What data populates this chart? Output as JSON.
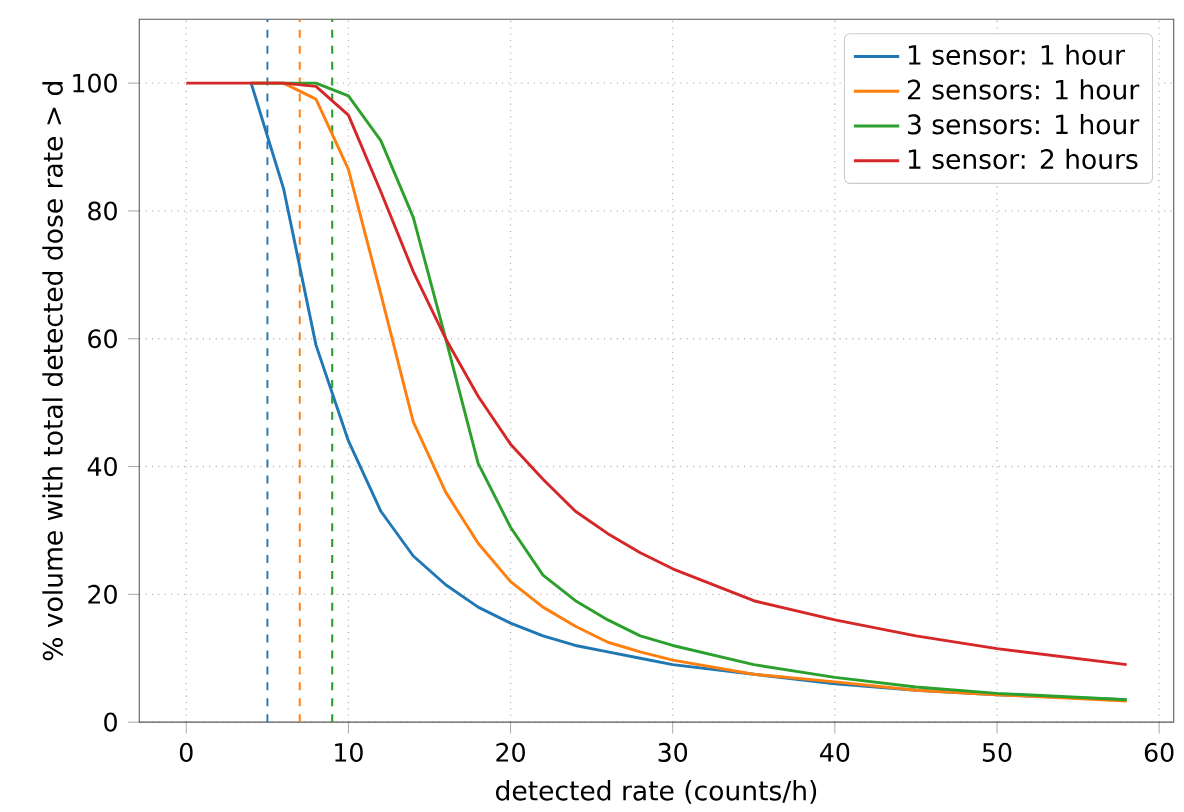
{
  "chart_data": {
    "type": "line",
    "xlabel": "detected rate (counts/h)",
    "ylabel": "% volume with total detected dose rate > d",
    "x": [
      0,
      2,
      4,
      6,
      8,
      10,
      12,
      14,
      16,
      18,
      20,
      22,
      24,
      26,
      28,
      30,
      35,
      40,
      45,
      50,
      58
    ],
    "series": [
      {
        "name": "1 sensor: 1 hour",
        "color": "#1f77b4",
        "values": [
          null,
          null,
          100,
          83.5,
          59,
          44,
          33,
          26,
          21.5,
          18,
          15.5,
          13.5,
          12,
          11,
          10,
          9,
          7.5,
          6,
          5,
          4.3,
          3.5
        ]
      },
      {
        "name": "2 sensors: 1 hour",
        "color": "#ff7f0e",
        "values": [
          null,
          null,
          100,
          100,
          97.5,
          86.5,
          67,
          47,
          36,
          28,
          22,
          18,
          15,
          12.5,
          11,
          9.7,
          7.5,
          6.3,
          5,
          4.3,
          3.3
        ]
      },
      {
        "name": "3 sensors: 1 hour",
        "color": "#2ca02c",
        "values": [
          null,
          null,
          100,
          100,
          100,
          98,
          91,
          79,
          60,
          40.5,
          30.5,
          23,
          19,
          16,
          13.5,
          12,
          9,
          7,
          5.5,
          4.5,
          3.5
        ]
      },
      {
        "name": "1 sensor: 2 hours",
        "color": "#d62728",
        "values": [
          100,
          100,
          100,
          100,
          99.5,
          95,
          83,
          70.5,
          60,
          51,
          43.5,
          38,
          33,
          29.5,
          26.5,
          24,
          19,
          16,
          13.5,
          11.5,
          9
        ]
      }
    ],
    "ref_lines": [
      {
        "axis": "x",
        "value": 5,
        "color": "#1f77b4",
        "line_style": "dashed"
      },
      {
        "axis": "x",
        "value": 7,
        "color": "#ff7f0e",
        "line_style": "dashed"
      },
      {
        "axis": "x",
        "value": 9,
        "color": "#2ca02c",
        "line_style": "dashed"
      }
    ],
    "xlim": [
      -2.9,
      60.9
    ],
    "ylim": [
      0,
      110
    ],
    "xticks": [
      0,
      10,
      20,
      30,
      40,
      50,
      60
    ],
    "yticks": [
      0,
      20,
      40,
      60,
      80,
      100
    ],
    "grid": true,
    "legend": "top right",
    "line_style": "solid",
    "marker": "none"
  }
}
